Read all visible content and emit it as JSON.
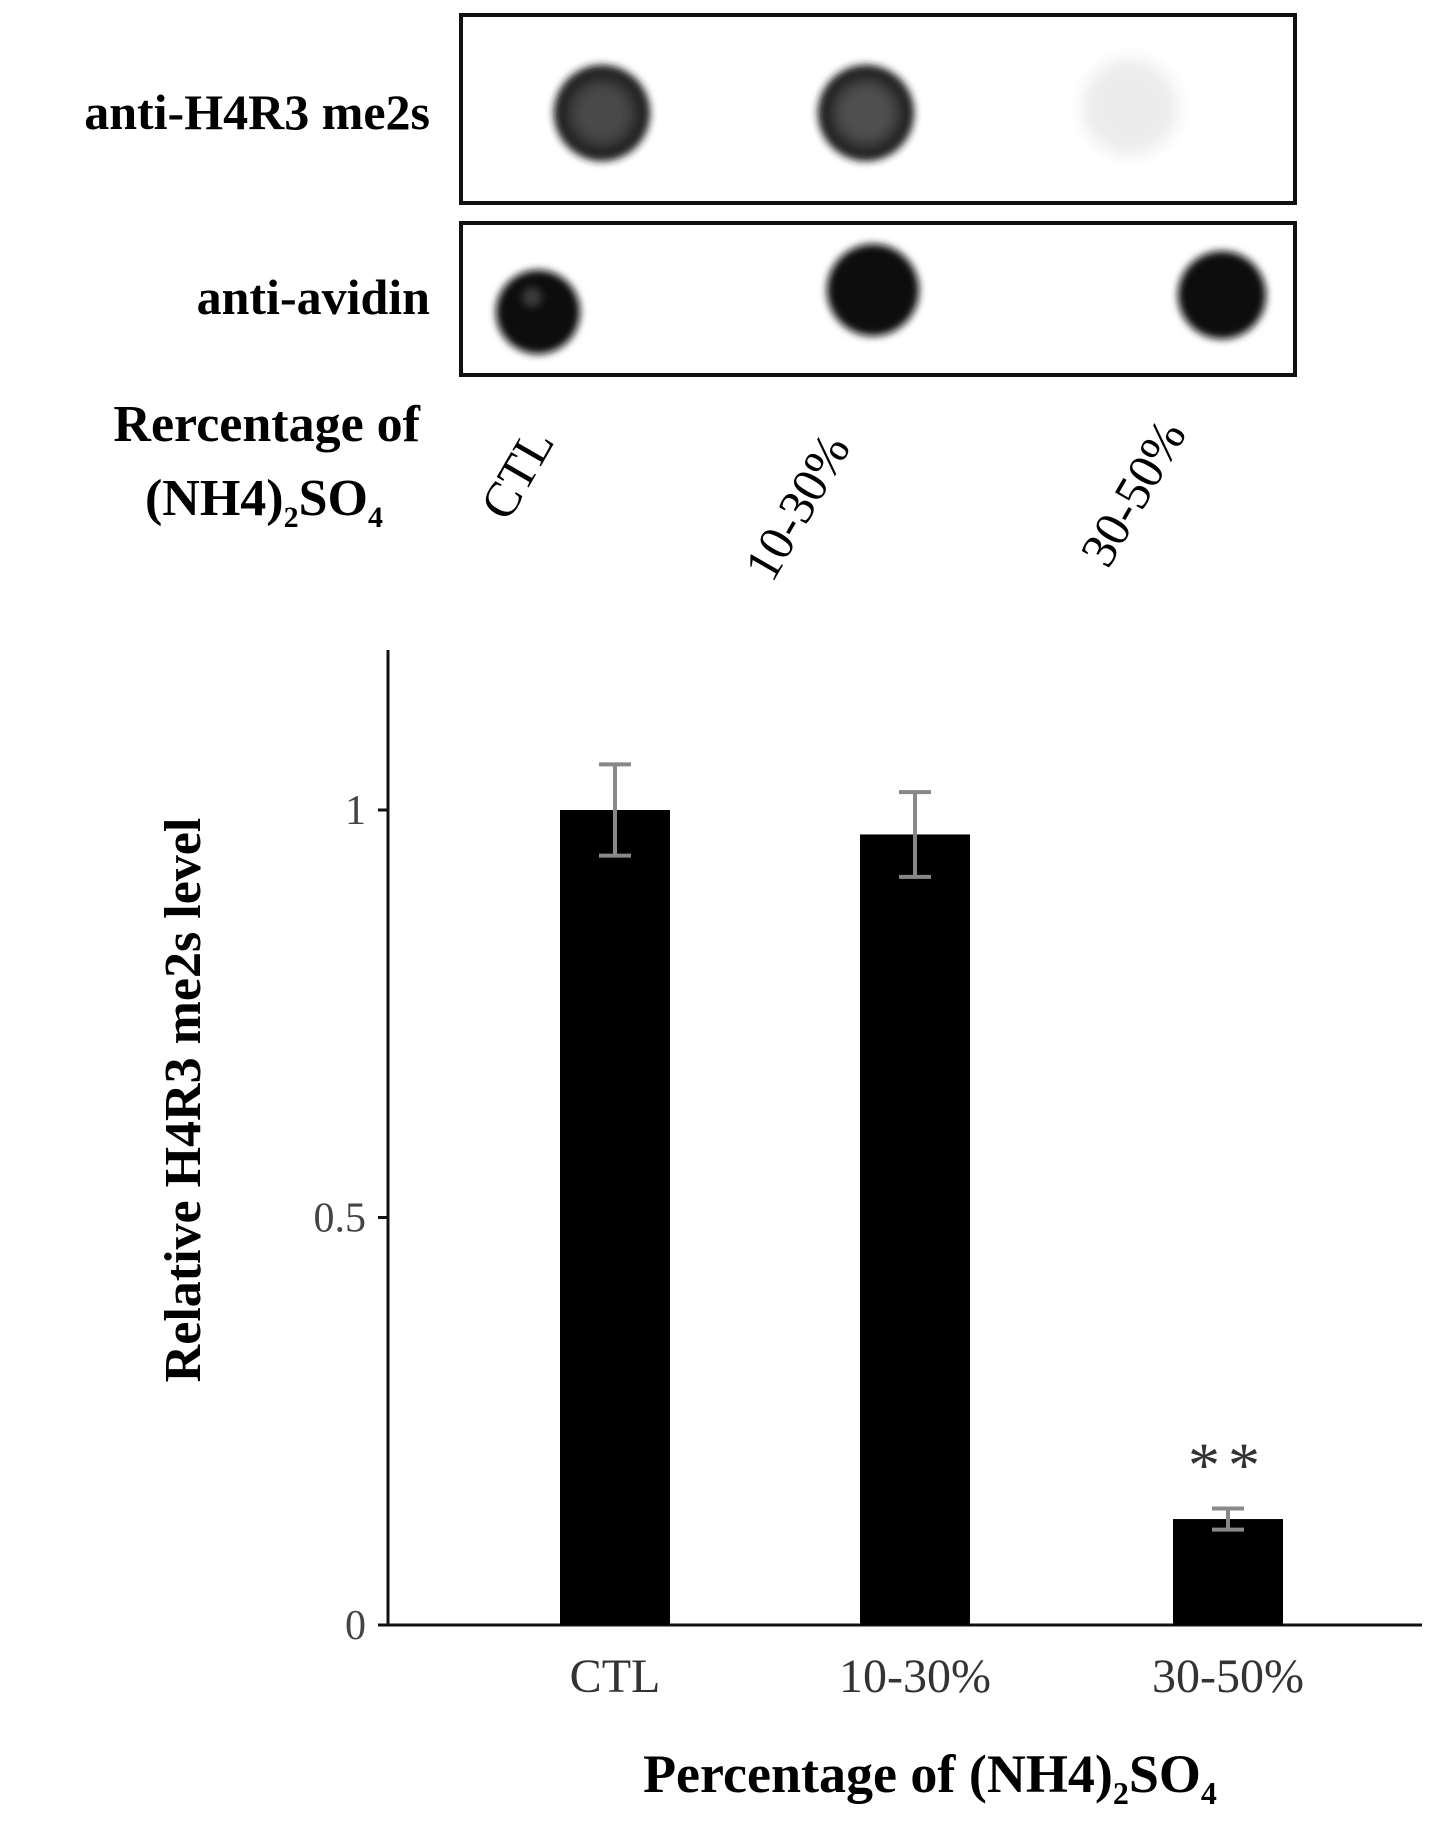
{
  "blot": {
    "row_labels": [
      "anti-H4R3 me2s",
      "anti-avidin"
    ],
    "x_label_line1": "Rercentage of",
    "x_label_line2_main": "(NH4)",
    "x_label_line2_sub1": "2",
    "x_label_line2_mid": "SO",
    "x_label_line2_sub2": "4",
    "lane_labels": [
      "CTL",
      "10-30%",
      "30-50%"
    ],
    "dot_colors": {
      "dark": "#141414",
      "medium": "#3a3a3a",
      "faint": "#e9e9e9"
    }
  },
  "chart_data": {
    "type": "bar",
    "categories": [
      "CTL",
      "10-30%",
      "30-50%"
    ],
    "values": [
      1.0,
      0.97,
      0.13
    ],
    "errors": [
      0.056,
      0.052,
      0.013
    ],
    "annotations": [
      {
        "category": "30-50%",
        "text": "**"
      }
    ],
    "ylabel": "Relative H4R3 me2s level",
    "xlabel_main": "Percentage of (NH4)",
    "xlabel_sub1": "2",
    "xlabel_mid": "SO",
    "xlabel_sub2": "4",
    "yticks": [
      0,
      0.5,
      1
    ],
    "ytick_labels": [
      "0",
      "0.5",
      "1"
    ],
    "ylim": [
      0,
      1.2
    ],
    "grid": false,
    "bar_color": "#000000",
    "error_color": "#888888"
  }
}
